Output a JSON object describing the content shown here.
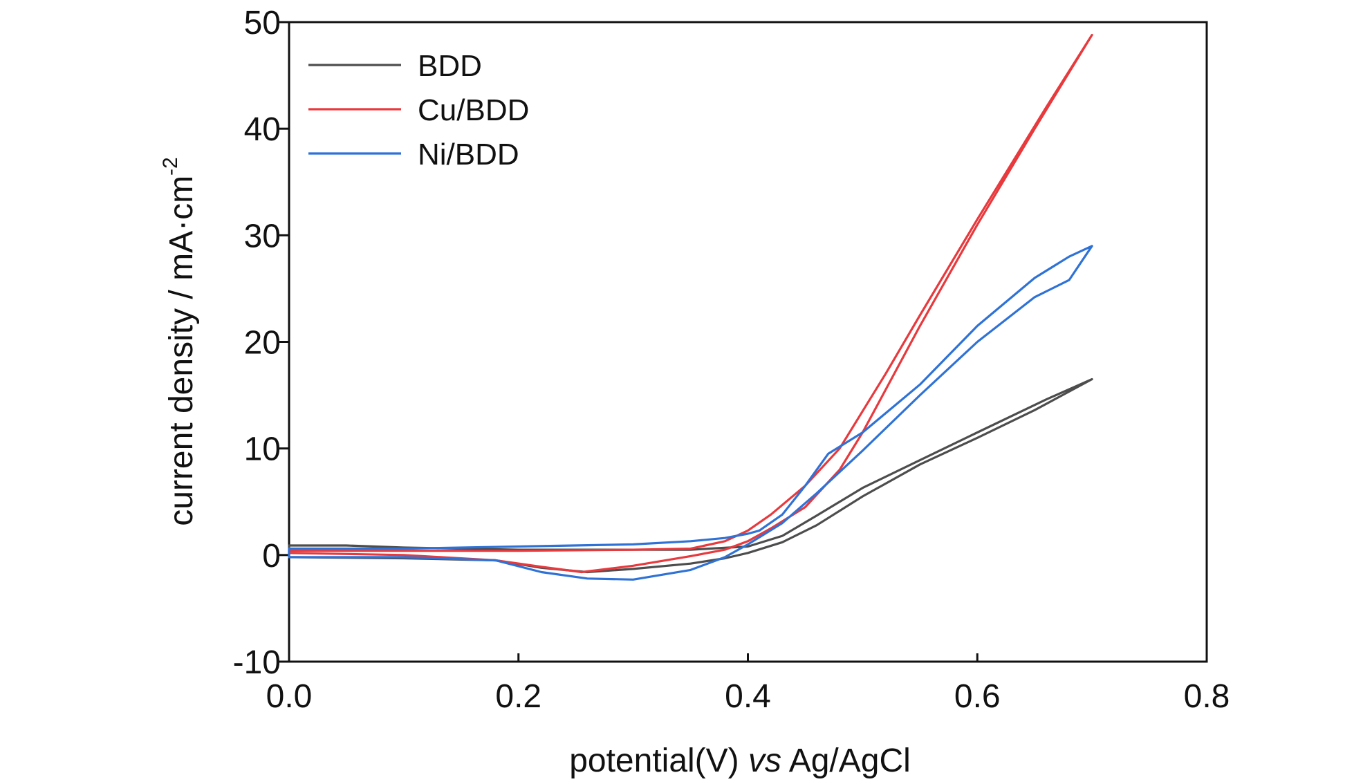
{
  "chart_data": {
    "type": "line",
    "title": "",
    "xlabel_prefix": "potential(V) ",
    "xlabel_italic": "vs",
    "xlabel_suffix": " Ag/AgCl",
    "ylabel_main": "current density / mA·cm",
    "ylabel_sup": "-2",
    "xlim": [
      0.0,
      0.8
    ],
    "ylim": [
      -10,
      50
    ],
    "x_ticks": [
      0.0,
      0.2,
      0.4,
      0.6,
      0.8
    ],
    "x_tick_labels": [
      "0.0",
      "0.2",
      "0.4",
      "0.6",
      "0.8"
    ],
    "y_ticks": [
      -10,
      0,
      10,
      20,
      30,
      40,
      50
    ],
    "y_tick_labels": [
      "-10",
      "0",
      "10",
      "20",
      "30",
      "40",
      "50"
    ],
    "grid": false,
    "legend_position": "top-left",
    "series": [
      {
        "name": "BDD",
        "color": "#4d4d4d",
        "points": [
          [
            0.0,
            -0.2
          ],
          [
            0.1,
            -0.3
          ],
          [
            0.18,
            -0.5
          ],
          [
            0.22,
            -1.2
          ],
          [
            0.26,
            -1.6
          ],
          [
            0.3,
            -1.3
          ],
          [
            0.35,
            -0.8
          ],
          [
            0.38,
            -0.3
          ],
          [
            0.4,
            0.2
          ],
          [
            0.43,
            1.2
          ],
          [
            0.46,
            2.8
          ],
          [
            0.5,
            5.5
          ],
          [
            0.55,
            8.5
          ],
          [
            0.6,
            11.0
          ],
          [
            0.65,
            13.6
          ],
          [
            0.7,
            16.5
          ],
          [
            0.66,
            14.6
          ],
          [
            0.6,
            11.5
          ],
          [
            0.55,
            8.9
          ],
          [
            0.5,
            6.3
          ],
          [
            0.46,
            3.7
          ],
          [
            0.43,
            1.8
          ],
          [
            0.4,
            0.8
          ],
          [
            0.35,
            0.5
          ],
          [
            0.3,
            0.5
          ],
          [
            0.2,
            0.5
          ],
          [
            0.1,
            0.7
          ],
          [
            0.05,
            0.9
          ],
          [
            0.0,
            0.9
          ]
        ]
      },
      {
        "name": "Cu/BDD",
        "color": "#e8393d",
        "points": [
          [
            0.0,
            0.2
          ],
          [
            0.1,
            0.0
          ],
          [
            0.18,
            -0.5
          ],
          [
            0.22,
            -1.1
          ],
          [
            0.255,
            -1.6
          ],
          [
            0.3,
            -1.0
          ],
          [
            0.35,
            -0.1
          ],
          [
            0.38,
            0.5
          ],
          [
            0.4,
            1.3
          ],
          [
            0.42,
            2.5
          ],
          [
            0.45,
            4.5
          ],
          [
            0.48,
            8.0
          ],
          [
            0.5,
            11.5
          ],
          [
            0.52,
            15.5
          ],
          [
            0.55,
            21.5
          ],
          [
            0.6,
            31.0
          ],
          [
            0.65,
            40.0
          ],
          [
            0.7,
            48.8
          ],
          [
            0.66,
            42.0
          ],
          [
            0.6,
            31.5
          ],
          [
            0.55,
            22.5
          ],
          [
            0.52,
            17.0
          ],
          [
            0.5,
            13.5
          ],
          [
            0.48,
            10.0
          ],
          [
            0.45,
            6.5
          ],
          [
            0.42,
            3.8
          ],
          [
            0.4,
            2.3
          ],
          [
            0.38,
            1.3
          ],
          [
            0.35,
            0.6
          ],
          [
            0.3,
            0.5
          ],
          [
            0.2,
            0.4
          ],
          [
            0.1,
            0.4
          ],
          [
            0.0,
            0.4
          ]
        ]
      },
      {
        "name": "Ni/BDD",
        "color": "#2f72d6",
        "points": [
          [
            0.0,
            -0.2
          ],
          [
            0.1,
            -0.2
          ],
          [
            0.18,
            -0.5
          ],
          [
            0.22,
            -1.6
          ],
          [
            0.26,
            -2.2
          ],
          [
            0.3,
            -2.3
          ],
          [
            0.35,
            -1.4
          ],
          [
            0.38,
            -0.2
          ],
          [
            0.4,
            1.0
          ],
          [
            0.43,
            3.0
          ],
          [
            0.46,
            5.8
          ],
          [
            0.5,
            9.8
          ],
          [
            0.55,
            15.0
          ],
          [
            0.6,
            20.0
          ],
          [
            0.65,
            24.2
          ],
          [
            0.68,
            25.8
          ],
          [
            0.7,
            29.0
          ],
          [
            0.68,
            28.0
          ],
          [
            0.65,
            26.0
          ],
          [
            0.6,
            21.5
          ],
          [
            0.55,
            16.0
          ],
          [
            0.5,
            11.5
          ],
          [
            0.47,
            9.5
          ],
          [
            0.45,
            6.5
          ],
          [
            0.43,
            3.8
          ],
          [
            0.41,
            2.3
          ],
          [
            0.4,
            2.0
          ],
          [
            0.38,
            1.6
          ],
          [
            0.35,
            1.3
          ],
          [
            0.3,
            1.0
          ],
          [
            0.2,
            0.8
          ],
          [
            0.1,
            0.6
          ],
          [
            0.0,
            0.6
          ]
        ]
      }
    ]
  }
}
